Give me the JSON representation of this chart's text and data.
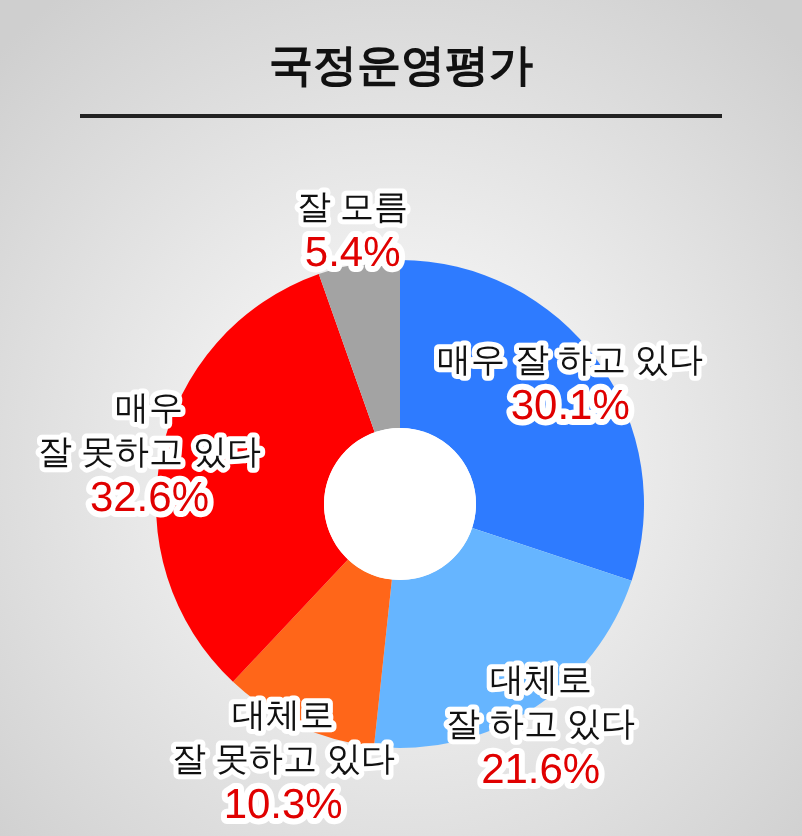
{
  "chart_data": {
    "type": "donut",
    "title": "국정운영평가",
    "categories": [
      "매우 잘 하고 있다",
      "대체로\n잘 하고 있다",
      "대체로\n잘 못하고 있다",
      "매우\n잘 못하고 있다",
      "잘 모름"
    ],
    "values": [
      30.1,
      21.6,
      10.3,
      32.6,
      5.4
    ],
    "colors": [
      "#2e7bff",
      "#66b5ff",
      "#ff6619",
      "#ff0000",
      "#a3a3a3"
    ],
    "value_labels": [
      "30.1%",
      "21.6%",
      "10.3%",
      "32.6%",
      "5.4%"
    ]
  }
}
